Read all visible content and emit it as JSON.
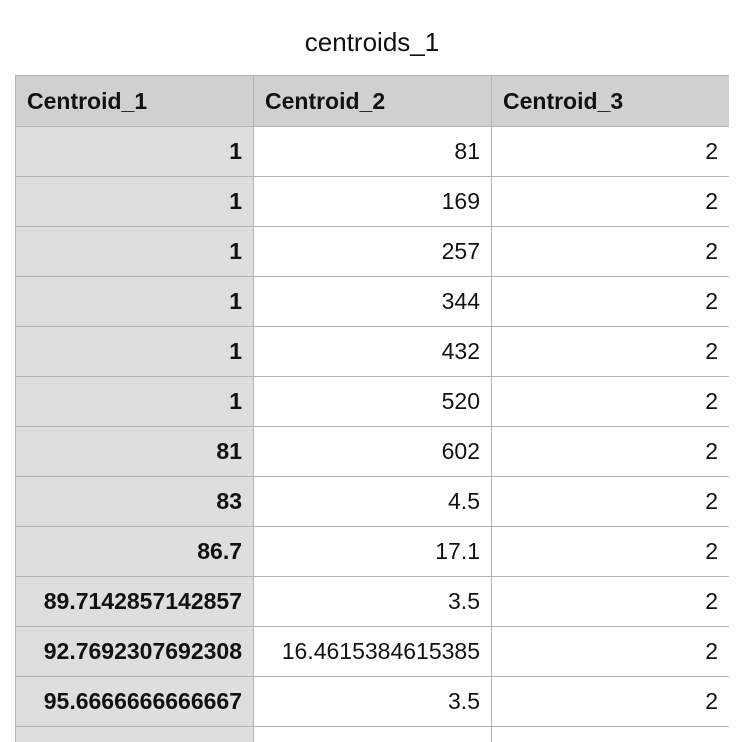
{
  "title": "centroids_1",
  "table": {
    "headers": [
      "Centroid_1",
      "Centroid_2",
      "Centroid_3"
    ],
    "rows": [
      [
        "1",
        "81",
        "2"
      ],
      [
        "1",
        "169",
        "2"
      ],
      [
        "1",
        "257",
        "2"
      ],
      [
        "1",
        "344",
        "2"
      ],
      [
        "1",
        "432",
        "2"
      ],
      [
        "1",
        "520",
        "2"
      ],
      [
        "81",
        "602",
        "2"
      ],
      [
        "83",
        "4.5",
        "2"
      ],
      [
        "86.7",
        "17.1",
        "2"
      ],
      [
        "89.7142857142857",
        "3.5",
        "2"
      ],
      [
        "92.7692307692308",
        "16.4615384615385",
        "2"
      ],
      [
        "95.6666666666667",
        "3.5",
        "2"
      ]
    ]
  },
  "colors": {
    "header_bg": "#d0d0d0",
    "first_column_bg": "#dedede",
    "grid_line": "#b3b3b3"
  }
}
